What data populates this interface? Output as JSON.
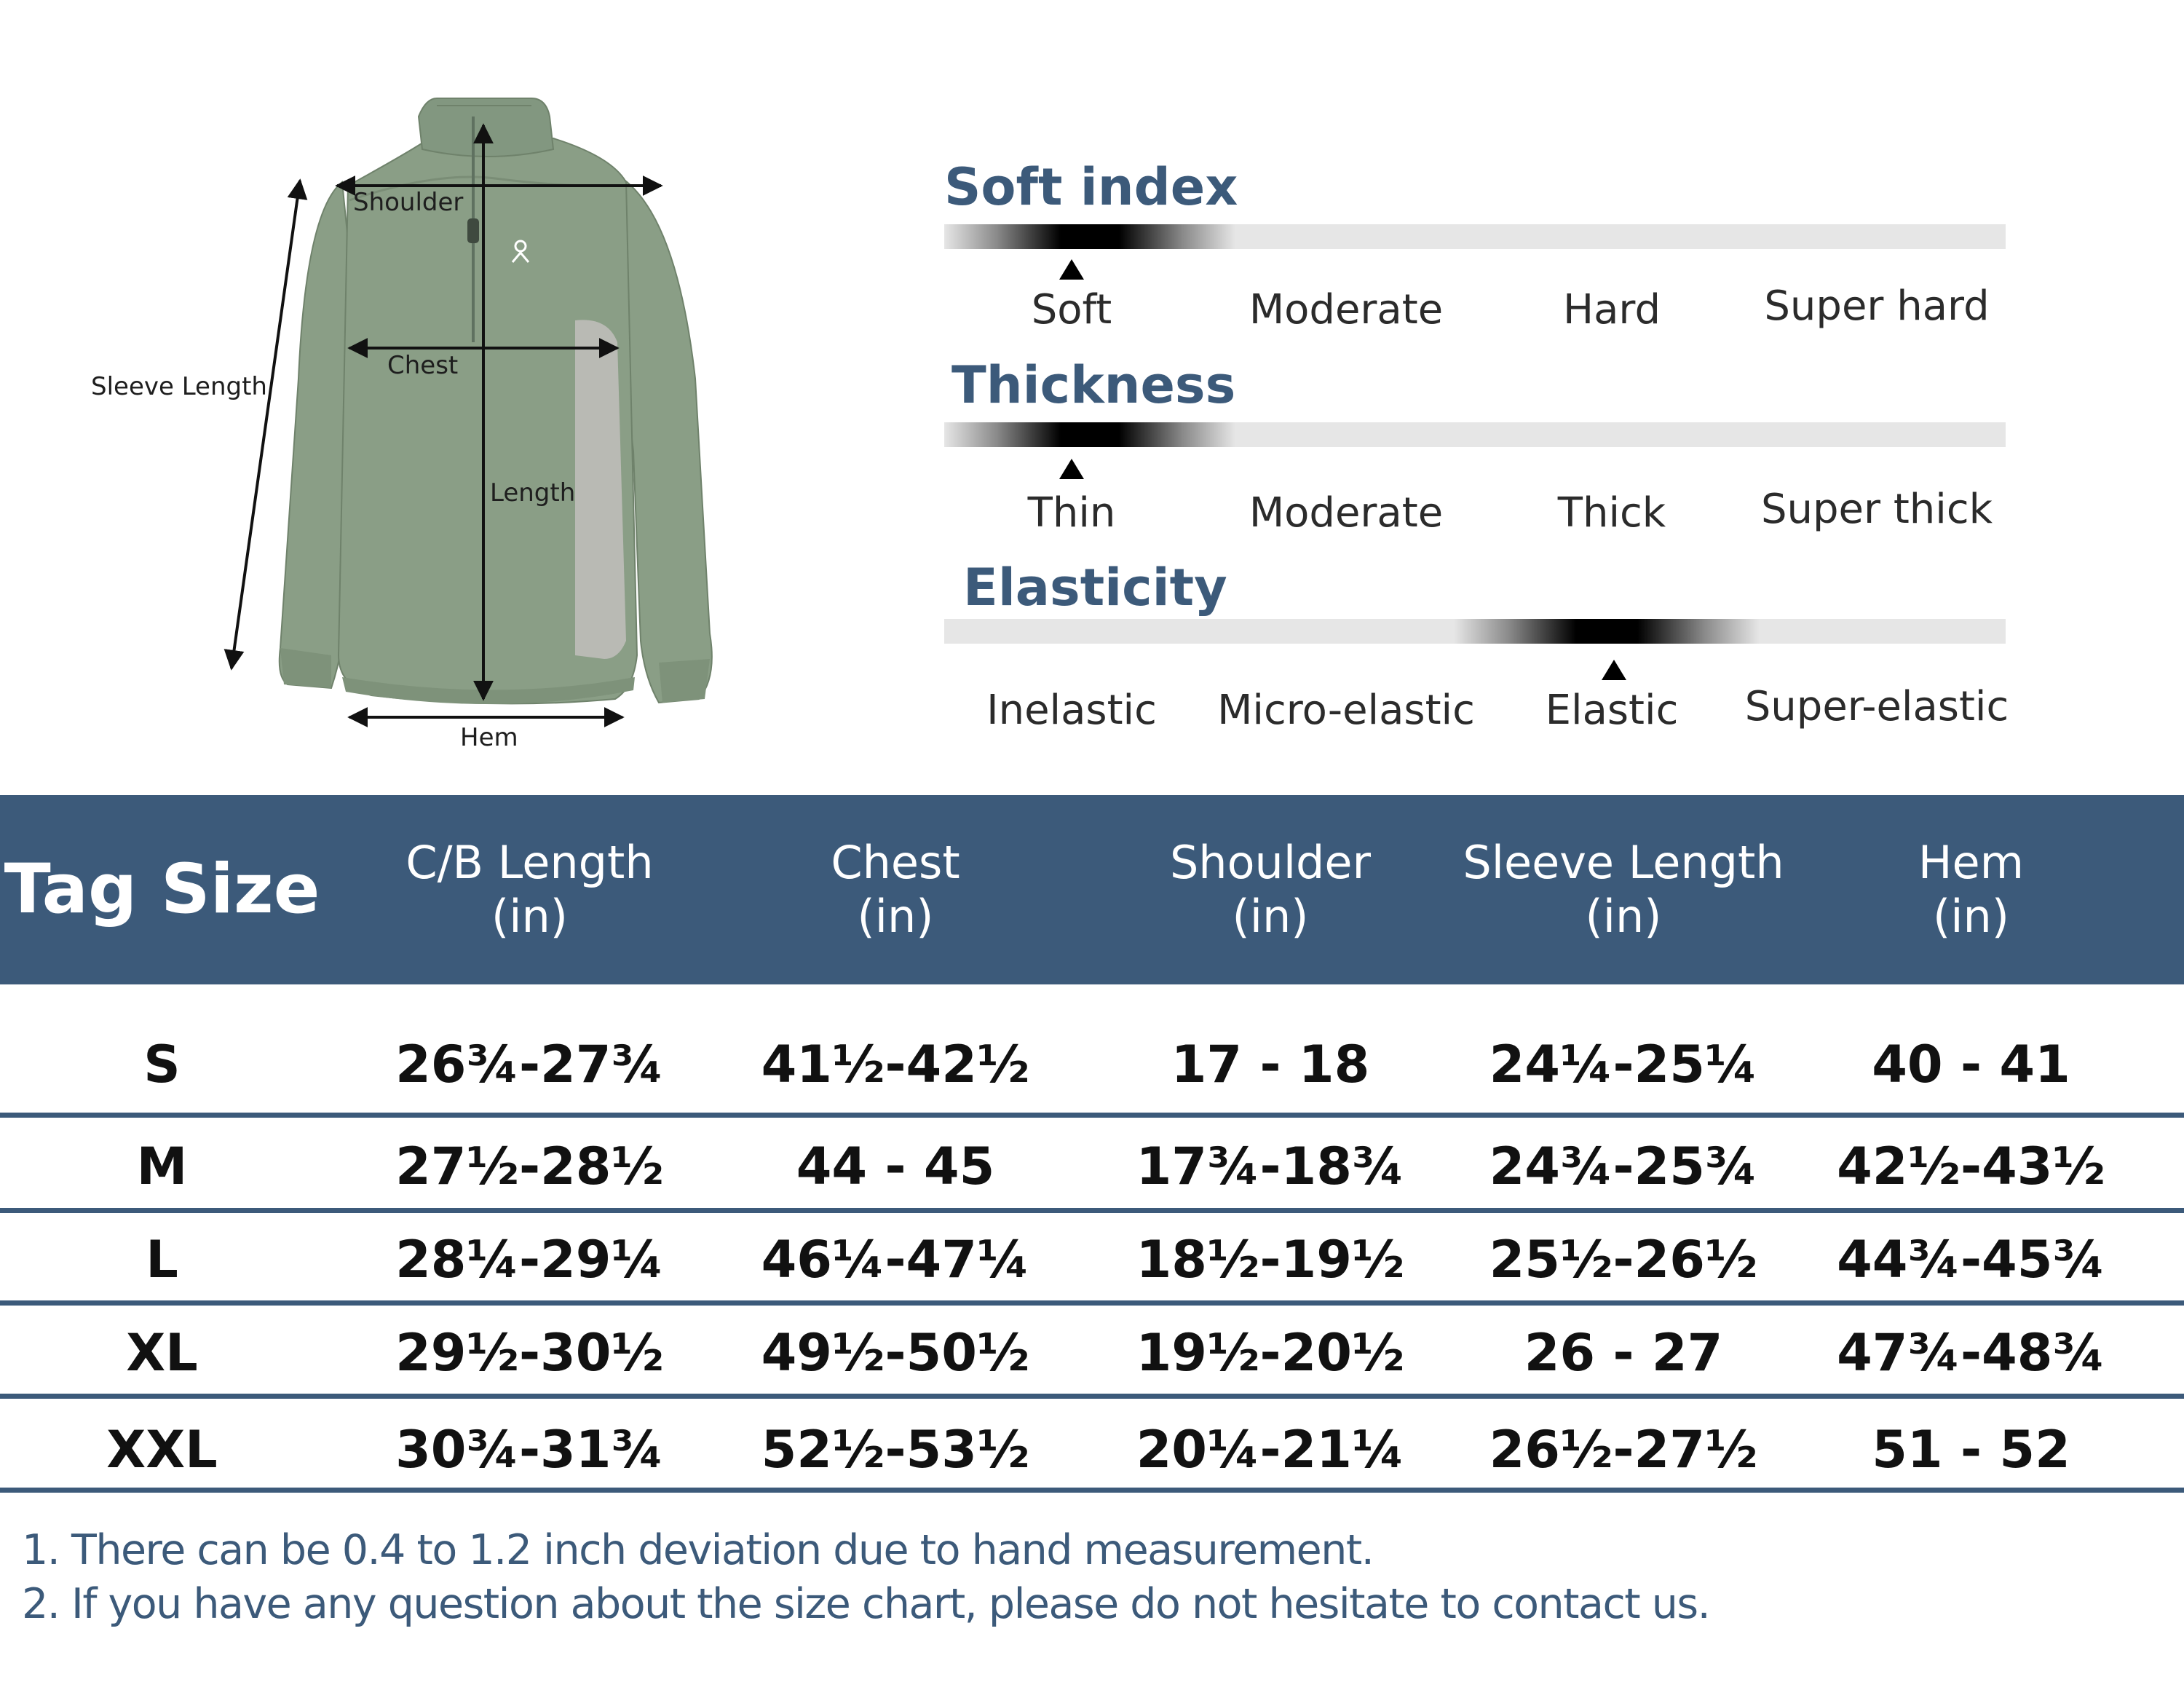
{
  "measurements": {
    "shoulder": "Shoulder",
    "sleeve_length": "Sleeve Length",
    "chest": "Chest",
    "length": "Length",
    "hem": "Hem"
  },
  "indicators": [
    {
      "title": "Soft index",
      "options": [
        "Soft",
        "Moderate",
        "Hard",
        "Super hard"
      ],
      "selected_index": 0,
      "selected": "Soft"
    },
    {
      "title": "Thickness",
      "options": [
        "Thin",
        "Moderate",
        "Thick",
        "Super thick"
      ],
      "selected_index": 0,
      "selected": "Thin"
    },
    {
      "title": "Elasticity",
      "options": [
        "Inelastic",
        "Micro-elastic",
        "Elastic",
        "Super-elastic"
      ],
      "selected_index": 2,
      "selected": "Elastic"
    }
  ],
  "table": {
    "headers": [
      {
        "line1": "Tag Size",
        "line2": ""
      },
      {
        "line1": "C/B Length",
        "line2": "(in)"
      },
      {
        "line1": "Chest",
        "line2": "(in)"
      },
      {
        "line1": "Shoulder",
        "line2": "(in)"
      },
      {
        "line1": "Sleeve Length",
        "line2": "(in)"
      },
      {
        "line1": "Hem",
        "line2": "(in)"
      }
    ],
    "rows": [
      [
        "S",
        "26¾-27¾",
        "41½-42½",
        "17 - 18",
        "24¼-25¼",
        "40 - 41"
      ],
      [
        "M",
        "27½-28½",
        "44 - 45",
        "17¾-18¾",
        "24¾-25¾",
        "42½-43½"
      ],
      [
        "L",
        "28¼-29¼",
        "46¼-47¼",
        "18½-19½",
        "25½-26½",
        "44¾-45¾"
      ],
      [
        "XL",
        "29½-30½",
        "49½-50½",
        "19½-20½",
        "26 - 27",
        "47¾-48¾"
      ],
      [
        "XXL",
        "30¾-31¾",
        "52½-53½",
        "20¼-21¼",
        "26½-27½",
        "51 - 52"
      ]
    ]
  },
  "notes": [
    "1. There can be 0.4 to 1.2 inch deviation due to hand measurement.",
    "2. If you have any question about the size chart, please do not hesitate to contact us."
  ],
  "colors": {
    "accent": "#3c5a7a",
    "jacket": "#8a9e86",
    "panel": "#b9bab4"
  }
}
